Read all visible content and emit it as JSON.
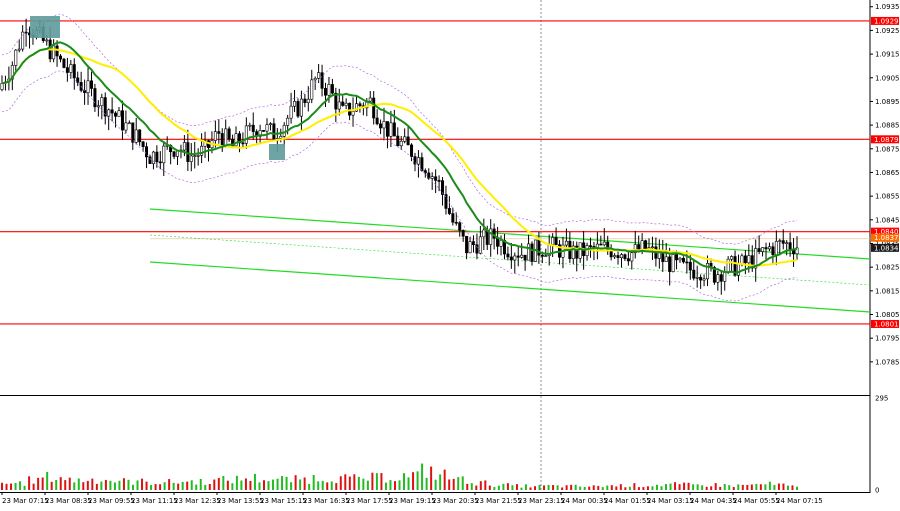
{
  "chart_data": {
    "type": "candlestick",
    "symbol": "",
    "price_axis": {
      "ylim": [
        1.0771,
        1.0937
      ],
      "tick_labels": [
        "1.0935",
        "1.0925",
        "1.0915",
        "1.0905",
        "1.0895",
        "1.0885",
        "1.0875",
        "1.0865",
        "1.0855",
        "1.0845",
        "1.0835",
        "1.0825",
        "1.0815",
        "1.0805",
        "1.0795",
        "1.0785"
      ],
      "tick_values": [
        1.0935,
        1.0925,
        1.0915,
        1.0905,
        1.0895,
        1.0885,
        1.0875,
        1.0865,
        1.0855,
        1.0845,
        1.0835,
        1.0825,
        1.0815,
        1.0805,
        1.0795,
        1.0785
      ]
    },
    "horizontal_levels": [
      {
        "label": "1.0929",
        "value": 1.0929,
        "color": "#ff0000"
      },
      {
        "label": "1.0879",
        "value": 1.0879,
        "color": "#ff0000"
      },
      {
        "label": "1.0840",
        "value": 1.084,
        "color": "#ff0000"
      },
      {
        "label": "1.0801",
        "value": 1.0801,
        "color": "#ff0000"
      }
    ],
    "price_tags": [
      {
        "label": "1.0837",
        "value": 1.0837,
        "color": "#ff6a00"
      },
      {
        "label": "1.0834",
        "value": 1.0834,
        "color": "#1a1a1a"
      }
    ],
    "time_axis": {
      "labels": [
        "23 Mar 07:15",
        "23 Mar 08:35",
        "23 Mar 09:55",
        "23 Mar 11:15",
        "23 Mar 12:35",
        "23 Mar 13:55",
        "23 Mar 15:15",
        "23 Mar 16:35",
        "23 Mar 17:55",
        "23 Mar 19:15",
        "23 Mar 20:35",
        "23 Mar 21:55",
        "23 Mar 23:15",
        "24 Mar 00:35",
        "24 Mar 01:55",
        "24 Mar 03:15",
        "24 Mar 04:35",
        "24 Mar 05:55",
        "24 Mar 07:15"
      ]
    },
    "close_series": [
      1.09,
      1.0911,
      1.0928,
      1.0922,
      1.0915,
      1.0908,
      1.0902,
      1.0897,
      1.0892,
      1.0886,
      1.088,
      1.0872,
      1.0874,
      1.0876,
      1.0872,
      1.0874,
      1.0882,
      1.0876,
      1.0881,
      1.0885,
      1.0881,
      1.0888,
      1.0894,
      1.0904,
      1.09,
      1.089,
      1.0893,
      1.0895,
      1.0885,
      1.0878,
      1.0874,
      1.0868,
      1.086,
      1.0844,
      1.0833,
      1.0836,
      1.0838,
      1.0833,
      1.0831,
      1.0832,
      1.0834,
      1.0832,
      1.0831,
      1.0832,
      1.0833,
      1.0832,
      1.0831,
      1.0833,
      1.0829,
      1.0826,
      1.0824,
      1.0824,
      1.0822,
      1.0825,
      1.0826,
      1.0829,
      1.0833,
      1.0835,
      1.0834
    ],
    "volume_axis": {
      "tick_labels": [
        "295",
        "0"
      ],
      "tick_values": [
        295,
        0
      ]
    },
    "volume_series": [
      38,
      42,
      56,
      75,
      72,
      58,
      60,
      62,
      55,
      50,
      48,
      46,
      45,
      48,
      50,
      52,
      58,
      62,
      70,
      66,
      62,
      60,
      64,
      70,
      72,
      68,
      64,
      70,
      75,
      80,
      85,
      112,
      88,
      70,
      58,
      40,
      32,
      28,
      24,
      22,
      24,
      22,
      22,
      20,
      24,
      26,
      28,
      26,
      30,
      32,
      30,
      28,
      30,
      28,
      26,
      30,
      34,
      30,
      20
    ],
    "legend": "none",
    "grid": false
  }
}
